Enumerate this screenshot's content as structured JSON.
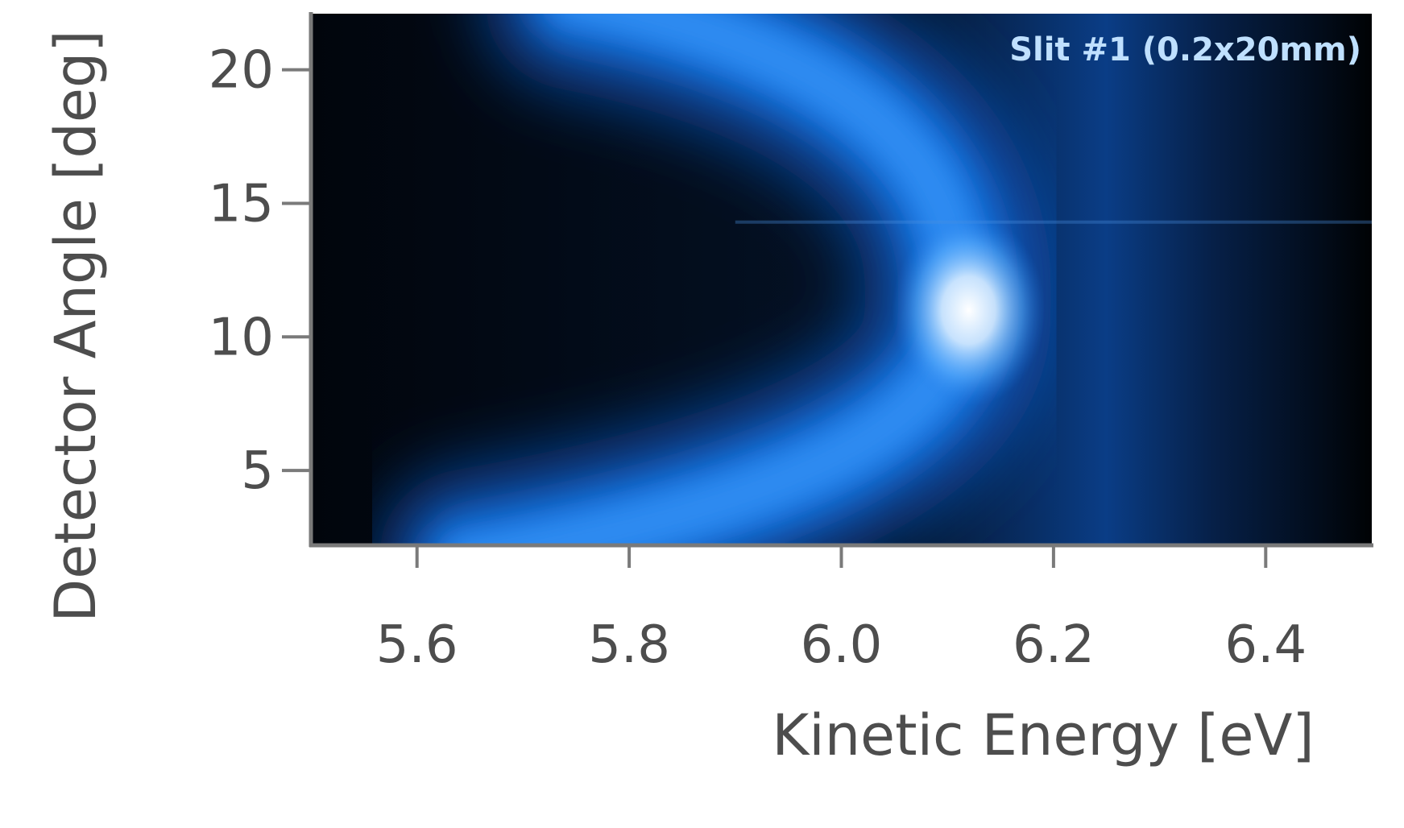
{
  "chart_data": {
    "type": "heatmap",
    "title": "",
    "xlabel": "Kinetic Energy [eV]",
    "ylabel": "Detector Angle [deg]",
    "xlim": [
      5.5,
      6.5
    ],
    "ylim": [
      2.2,
      22.1
    ],
    "xticks": [
      5.6,
      5.8,
      6.0,
      6.2,
      6.4
    ],
    "xtick_labels": [
      "5.6",
      "5.8",
      "6.0",
      "6.2",
      "6.4"
    ],
    "yticks": [
      5,
      10,
      15,
      20
    ],
    "ytick_labels": [
      "5",
      "10",
      "15",
      "20"
    ],
    "annotation": "Slit #1 (0.2x20mm)",
    "grid": false,
    "colormap": [
      "#02060d",
      "#0a3a7a",
      "#1670e0",
      "#5ab0ff",
      "#ffffff"
    ],
    "features": {
      "band_vertex": {
        "x": 6.11,
        "y": 11.0
      },
      "hotspot": {
        "x": 6.12,
        "y": 11.0
      },
      "band_extent_low": {
        "x": 5.65,
        "y": 2.5
      },
      "band_extent_high": {
        "x": 5.75,
        "y": 21.5
      }
    }
  }
}
